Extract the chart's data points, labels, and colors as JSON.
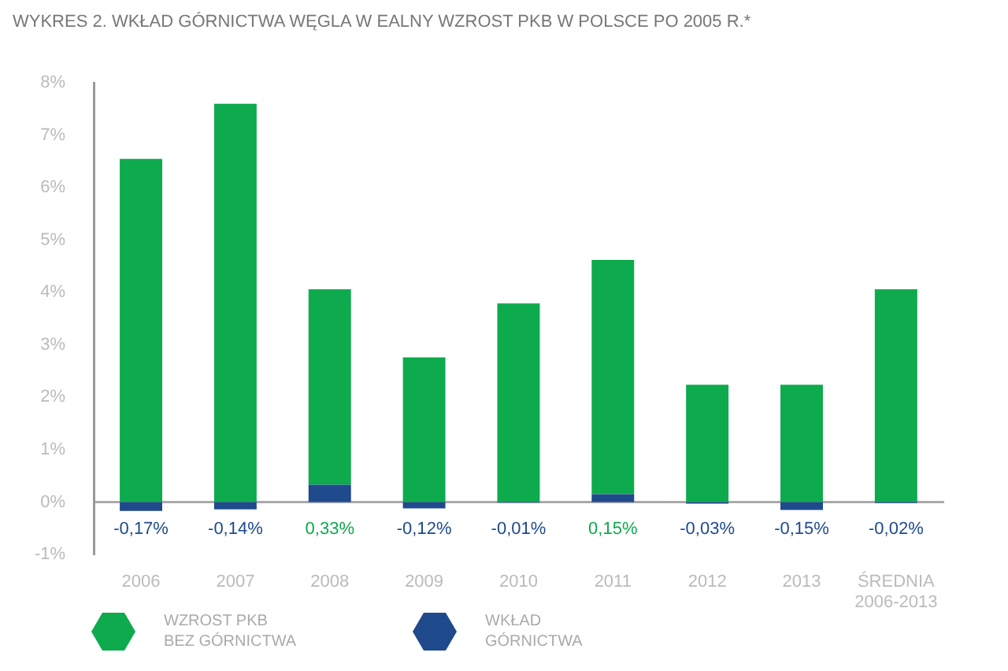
{
  "chart_data": {
    "type": "bar",
    "title": "WYKRES 2. WKŁAD GÓRNICTWA WĘGLA W EALNY WZROST PKB W POLSCE PO 2005 R.*",
    "categories": [
      "2006",
      "2007",
      "2008",
      "2009",
      "2010",
      "2011",
      "2012",
      "2013",
      "ŚREDNIA 2006-2013"
    ],
    "stacked": true,
    "series": [
      {
        "name": "WKŁAD GÓRNICTWA",
        "color": "#1f4a8c",
        "values": [
          -0.17,
          -0.14,
          0.33,
          -0.12,
          -0.01,
          0.15,
          -0.03,
          -0.15,
          -0.02
        ],
        "value_labels": [
          "-0,17%",
          "-0,14%",
          "0,33%",
          "-0,12%",
          "-0,01%",
          "0,15%",
          "-0,03%",
          "-0,15%",
          "-0,02%"
        ]
      },
      {
        "name": "WZROST PKB BEZ GÓRNICTWA",
        "color": "#0eaa4e",
        "values": [
          6.55,
          7.6,
          3.73,
          2.76,
          3.79,
          4.47,
          2.24,
          2.24,
          4.06
        ]
      }
    ],
    "ylim": [
      -1,
      8
    ],
    "yticks": [
      {
        "value": -1,
        "label": "-1%"
      },
      {
        "value": 0,
        "label": "0%"
      },
      {
        "value": 1,
        "label": "1%"
      },
      {
        "value": 2,
        "label": "2%"
      },
      {
        "value": 3,
        "label": "3%"
      },
      {
        "value": 4,
        "label": "4%"
      },
      {
        "value": 5,
        "label": "5%"
      },
      {
        "value": 6,
        "label": "6%"
      },
      {
        "value": 7,
        "label": "7%"
      },
      {
        "value": 8,
        "label": "8%"
      }
    ],
    "legend": "bottom left"
  }
}
